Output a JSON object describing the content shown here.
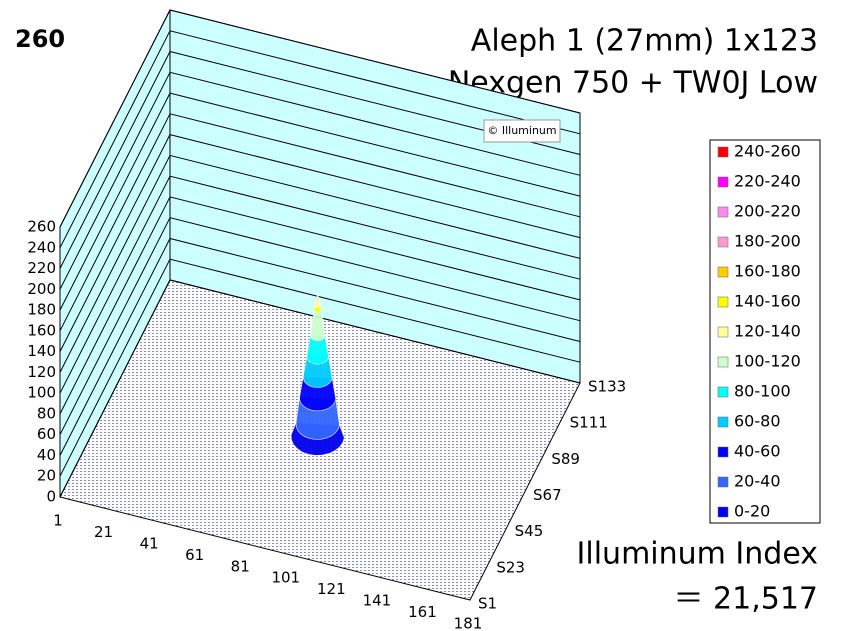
{
  "chart_data": {
    "type": "surface",
    "corner_label": "260",
    "title": "Aleph 1 (27mm) 1x123",
    "subtitle": "Nexgen 750 + TW0J Low",
    "watermark": "© Illuminum",
    "index_label": "Illuminum Index",
    "index_value": "＝ 21,517",
    "categories": [
      "1",
      "21",
      "41",
      "61",
      "81",
      "101",
      "121",
      "141",
      "161",
      "181"
    ],
    "category_positions": [
      1,
      21,
      41,
      61,
      81,
      101,
      121,
      141,
      161,
      181
    ],
    "xlim": [
      1,
      181
    ],
    "series_labels": [
      "S1",
      "S23",
      "S45",
      "S67",
      "S89",
      "S111",
      "S133"
    ],
    "series_positions": [
      1,
      23,
      45,
      67,
      89,
      111,
      133
    ],
    "slim": [
      1,
      133
    ],
    "zlim": [
      0,
      260
    ],
    "zticks": [
      0,
      20,
      40,
      60,
      80,
      100,
      120,
      140,
      160,
      180,
      200,
      220,
      240,
      260
    ],
    "peak_x": 90,
    "peak_s": 67,
    "profile": {
      "r": [
        0,
        1.5,
        3,
        4.5,
        6,
        7.5,
        9,
        11
      ],
      "z": [
        140,
        125,
        100,
        80,
        60,
        40,
        15,
        3
      ]
    },
    "wall_color": "#ccffff",
    "floor_color": "#1a2a9a",
    "legend": [
      {
        "name": "240-260",
        "color": "#ff0000"
      },
      {
        "name": "220-240",
        "color": "#ff00ff"
      },
      {
        "name": "200-220",
        "color": "#ff88ee"
      },
      {
        "name": "180-200",
        "color": "#ff99cc"
      },
      {
        "name": "160-180",
        "color": "#ffcc00"
      },
      {
        "name": "140-160",
        "color": "#ffff00"
      },
      {
        "name": "120-140",
        "color": "#ffff99"
      },
      {
        "name": "100-120",
        "color": "#ccffcc"
      },
      {
        "name": "80-100",
        "color": "#00ffff"
      },
      {
        "name": "60-80",
        "color": "#00ccff"
      },
      {
        "name": "40-60",
        "color": "#0000ff"
      },
      {
        "name": "20-40",
        "color": "#3366ff"
      },
      {
        "name": "0-20",
        "color": "#0000ee"
      }
    ]
  }
}
